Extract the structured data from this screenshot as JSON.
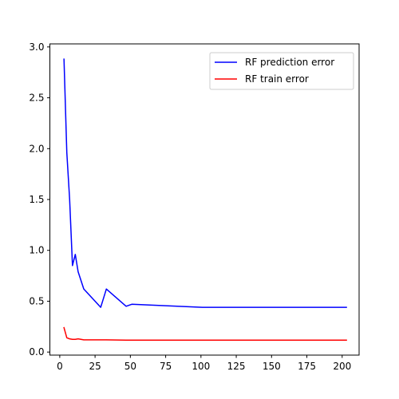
{
  "chart_data": {
    "type": "line",
    "title": "",
    "xlabel": "",
    "ylabel": "",
    "xlim": [
      -7,
      212
    ],
    "ylim": [
      -0.03,
      3.03
    ],
    "xticks": [
      0,
      25,
      50,
      75,
      100,
      125,
      150,
      175,
      200
    ],
    "yticks": [
      0.0,
      0.5,
      1.0,
      1.5,
      2.0,
      2.5,
      3.0
    ],
    "xtick_labels": [
      "0",
      "25",
      "50",
      "75",
      "100",
      "125",
      "150",
      "175",
      "200"
    ],
    "ytick_labels": [
      "0.0",
      "0.5",
      "1.0",
      "1.5",
      "2.0",
      "2.5",
      "3.0"
    ],
    "grid": false,
    "legend_position": "top-right",
    "series": [
      {
        "name": "RF prediction error",
        "color": "#0000ff",
        "x": [
          3,
          5,
          7,
          9,
          11,
          13,
          17,
          29,
          33,
          47,
          51,
          101,
          203
        ],
        "y": [
          2.88,
          1.96,
          1.5,
          0.85,
          0.96,
          0.79,
          0.62,
          0.44,
          0.62,
          0.45,
          0.47,
          0.44,
          0.44
        ]
      },
      {
        "name": "RF train error",
        "color": "#ff0000",
        "x": [
          3,
          5,
          7,
          9,
          11,
          13,
          17,
          29,
          33,
          47,
          51,
          101,
          203
        ],
        "y": [
          0.24,
          0.14,
          0.13,
          0.125,
          0.125,
          0.13,
          0.12,
          0.12,
          0.12,
          0.117,
          0.117,
          0.117,
          0.117
        ]
      }
    ]
  }
}
